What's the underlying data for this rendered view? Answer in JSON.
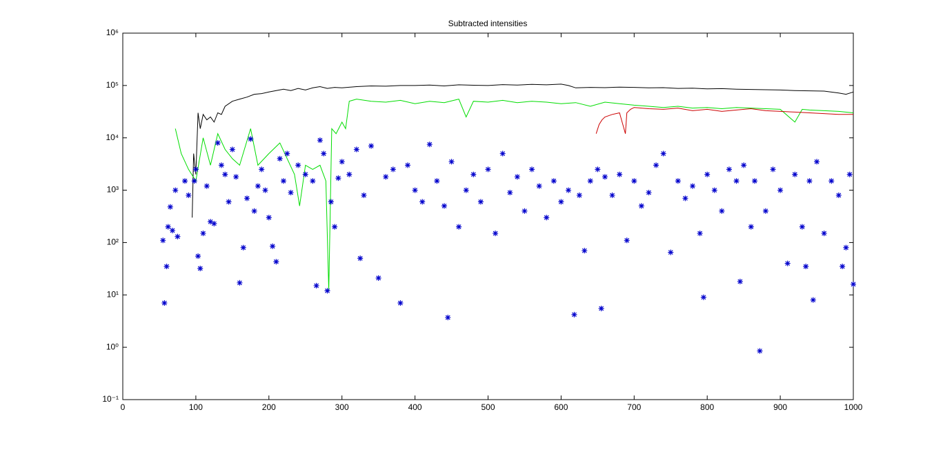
{
  "chart_data": {
    "type": "line",
    "title": "Subtracted intensities",
    "log_y": true,
    "xlim": [
      0,
      1000
    ],
    "xticks": [
      0,
      100,
      200,
      300,
      400,
      500,
      600,
      700,
      800,
      900,
      1000
    ],
    "ylim": [
      0.1,
      1000000
    ],
    "yticks": [
      {
        "value": 0.1,
        "label": "10⁻¹"
      },
      {
        "value": 1,
        "label": "10⁰"
      },
      {
        "value": 10,
        "label": "10¹"
      },
      {
        "value": 100,
        "label": "10²"
      },
      {
        "value": 1000,
        "label": "10³"
      },
      {
        "value": 10000,
        "label": "10⁴"
      },
      {
        "value": 100000,
        "label": "10⁵"
      },
      {
        "value": 1000000,
        "label": "10⁶"
      }
    ],
    "series": [
      {
        "color": "#000000",
        "style": "line",
        "x": [
          95,
          97,
          100,
          103,
          106,
          110,
          115,
          120,
          125,
          130,
          135,
          140,
          150,
          160,
          170,
          180,
          190,
          200,
          210,
          220,
          230,
          240,
          250,
          260,
          270,
          280,
          290,
          300,
          320,
          340,
          360,
          380,
          400,
          420,
          440,
          460,
          480,
          500,
          520,
          540,
          560,
          580,
          600,
          610,
          620,
          640,
          660,
          680,
          700,
          720,
          740,
          760,
          780,
          800,
          820,
          840,
          860,
          880,
          900,
          920,
          940,
          960,
          980,
          990,
          1000
        ],
        "values": [
          300,
          5000,
          2000,
          30000,
          15000,
          28000,
          22000,
          25000,
          20000,
          30000,
          28000,
          40000,
          50000,
          55000,
          60000,
          68000,
          70000,
          75000,
          80000,
          85000,
          80000,
          88000,
          82000,
          90000,
          95000,
          88000,
          92000,
          90000,
          95000,
          98000,
          97000,
          100000,
          100000,
          102000,
          98000,
          103000,
          101000,
          100000,
          104000,
          102000,
          105000,
          103000,
          106000,
          100000,
          90000,
          92000,
          91000,
          93000,
          92000,
          90000,
          91000,
          88000,
          89000,
          86000,
          87000,
          85000,
          84000,
          83000,
          82000,
          80000,
          79000,
          78000,
          72000,
          68000,
          75000
        ]
      },
      {
        "color": "#00dd00",
        "style": "line",
        "x": [
          72,
          80,
          90,
          100,
          110,
          120,
          130,
          140,
          150,
          160,
          175,
          185,
          200,
          215,
          225,
          235,
          242,
          250,
          260,
          270,
          278,
          282,
          286,
          292,
          300,
          305,
          310,
          320,
          340,
          360,
          380,
          400,
          420,
          440,
          460,
          470,
          480,
          500,
          520,
          540,
          560,
          580,
          600,
          620,
          640,
          660,
          680,
          700,
          720,
          740,
          760,
          780,
          800,
          820,
          840,
          860,
          880,
          900,
          920,
          930,
          940,
          960,
          980,
          1000
        ],
        "values": [
          15000,
          5000,
          2500,
          1500,
          10000,
          3000,
          12000,
          6000,
          4000,
          3000,
          15000,
          3000,
          5000,
          8000,
          4000,
          2000,
          500,
          3000,
          2500,
          3000,
          1500,
          12,
          15000,
          12000,
          20000,
          15000,
          50000,
          55000,
          50000,
          48000,
          52000,
          45000,
          50000,
          47000,
          55000,
          25000,
          50000,
          48000,
          52000,
          47000,
          50000,
          48000,
          45000,
          47000,
          40000,
          48000,
          45000,
          42000,
          40000,
          38000,
          40000,
          37000,
          38000,
          36000,
          38000,
          37000,
          36000,
          35000,
          20000,
          35000,
          34000,
          33000,
          32000,
          30000
        ]
      },
      {
        "color": "#cc0000",
        "style": "line",
        "x": [
          648,
          652,
          656,
          660,
          670,
          680,
          688,
          690,
          695,
          700,
          720,
          740,
          760,
          780,
          800,
          820,
          840,
          860,
          880,
          900,
          920,
          940,
          960,
          980,
          1000
        ],
        "values": [
          12000,
          18000,
          22000,
          25000,
          28000,
          30000,
          12000,
          30000,
          35000,
          38000,
          36000,
          35000,
          37000,
          33000,
          35000,
          32000,
          34000,
          36000,
          33000,
          32000,
          31000,
          30000,
          29000,
          28000,
          28000
        ]
      },
      {
        "color": "#0000cc",
        "style": "star",
        "x": [
          55,
          57,
          60,
          62,
          65,
          68,
          72,
          75,
          85,
          90,
          98,
          100,
          103,
          106,
          110,
          115,
          120,
          125,
          130,
          135,
          140,
          145,
          150,
          155,
          160,
          165,
          170,
          175,
          180,
          185,
          190,
          195,
          200,
          205,
          210,
          215,
          220,
          225,
          230,
          240,
          250,
          260,
          265,
          270,
          275,
          280,
          285,
          290,
          295,
          300,
          310,
          320,
          325,
          330,
          340,
          350,
          360,
          370,
          380,
          390,
          400,
          410,
          420,
          430,
          440,
          445,
          450,
          460,
          470,
          480,
          490,
          500,
          510,
          520,
          530,
          540,
          550,
          560,
          570,
          580,
          590,
          600,
          610,
          618,
          625,
          632,
          640,
          650,
          655,
          660,
          670,
          680,
          690,
          700,
          710,
          720,
          730,
          740,
          750,
          760,
          770,
          780,
          790,
          795,
          800,
          810,
          820,
          830,
          840,
          845,
          850,
          860,
          865,
          872,
          880,
          890,
          900,
          910,
          920,
          930,
          935,
          940,
          945,
          950,
          960,
          970,
          980,
          985,
          990,
          995,
          1000
        ],
        "values": [
          110,
          7,
          35,
          200,
          480,
          170,
          1000,
          130,
          1500,
          800,
          1500,
          2500,
          55,
          32,
          150,
          1200,
          250,
          230,
          8000,
          3000,
          2000,
          600,
          6000,
          1800,
          17,
          80,
          700,
          9500,
          400,
          1200,
          2500,
          1000,
          300,
          85,
          43,
          4000,
          1500,
          5000,
          900,
          3000,
          2000,
          1500,
          15,
          9000,
          5000,
          12,
          600,
          200,
          1700,
          3500,
          2000,
          6000,
          50,
          800,
          7000,
          21,
          1800,
          2500,
          7,
          3000,
          1000,
          600,
          7500,
          1500,
          500,
          3.7,
          3500,
          200,
          1000,
          2000,
          600,
          2500,
          150,
          5000,
          900,
          1800,
          400,
          2500,
          1200,
          300,
          1500,
          600,
          1000,
          4.2,
          800,
          70,
          1500,
          2500,
          5.5,
          1800,
          800,
          2000,
          110,
          1500,
          500,
          900,
          3000,
          5000,
          65,
          1500,
          700,
          1200,
          150,
          9,
          2000,
          1000,
          400,
          2500,
          1500,
          18,
          3000,
          200,
          1500,
          0.85,
          400,
          2500,
          1000,
          40,
          2000,
          200,
          35,
          1500,
          8,
          3500,
          150,
          1500,
          800,
          35,
          80,
          2000,
          16
        ]
      }
    ]
  }
}
